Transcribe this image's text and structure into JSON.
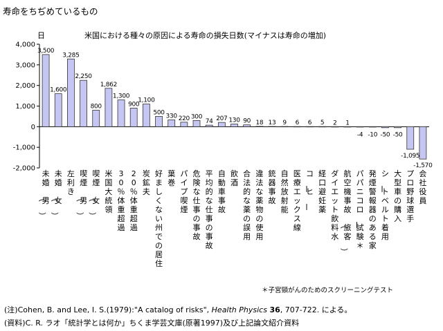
{
  "page": {
    "title": "寿命をちぢめているもの",
    "footnote": "＊子宮頸がんのためのスクリーニングテスト",
    "note": {
      "prefix": "(注)Cohen, B. and Lee, I. S.(1979):\"A catalog of risks\", ",
      "journal": "Health Physics",
      "volume": "36",
      "suffix": ", 707-722. による。"
    },
    "source": "(資料)C. R. ラオ「統計学とは何か」ちくま学芸文庫(原著1997)及び上記論文紹介資料"
  },
  "chart_data": {
    "type": "bar",
    "title": "米国における種々の原因による寿命の損失日数(マイナスは寿命の増加)",
    "ylabel": "日",
    "xlabel": "",
    "ylim": [
      -2000,
      4000
    ],
    "yticks": [
      -2000,
      -1000,
      0,
      1000,
      2000,
      3000,
      4000
    ],
    "ytick_labels": [
      "-2,000",
      "-1,000",
      "0",
      "1,000",
      "2,000",
      "3,000",
      "4,000"
    ],
    "grid": false,
    "legend": "none",
    "colors": {
      "bar_fill": "#c6c6f2",
      "bar_stroke": "#333333",
      "axis": "#000000"
    },
    "categories": [
      "未婚（男）",
      "未婚（女）",
      "左利き",
      "喫煙（男）",
      "喫煙（女）",
      "米国大統領",
      "30％体重超過",
      "20％体重超過",
      "炭鉱夫",
      "好ましくない州での居住",
      "葉巻",
      "パイプ喫煙",
      "危険な仕事の事故",
      "平均的な仕事の事故",
      "自動車事故",
      "飲酒",
      "合法的な薬の誤用",
      "違法な薬物の使用",
      "銃器事故",
      "自然放射能",
      "医療エックス線",
      "コーヒー",
      "経口避妊薬",
      "ダイエット飲料水",
      "航空機事故（旅客）",
      "パパニコロー試験＊",
      "発煙警報器のある家",
      "シートベルト着用",
      "大型車の購入",
      "プロ野球選手",
      "会社役員"
    ],
    "values": [
      3500,
      1600,
      3285,
      2250,
      800,
      1862,
      1300,
      900,
      1100,
      500,
      330,
      220,
      300,
      74,
      207,
      130,
      90,
      18,
      13,
      9,
      6,
      6,
      5,
      2,
      1,
      -4,
      -10,
      -50,
      -50,
      -1095,
      -1570
    ],
    "value_labels": [
      "3,500",
      "1,600",
      "3,285",
      "2,250",
      "800",
      "1,862",
      "1,300",
      "900",
      "1,100",
      "500",
      "330",
      "220",
      "300",
      "74",
      "207",
      "130",
      "90",
      "18",
      "13",
      "9",
      "6",
      "6",
      "5",
      "2",
      "1",
      "-4",
      "-10",
      "-50",
      "-50",
      "-1,095",
      "-1,570"
    ]
  }
}
